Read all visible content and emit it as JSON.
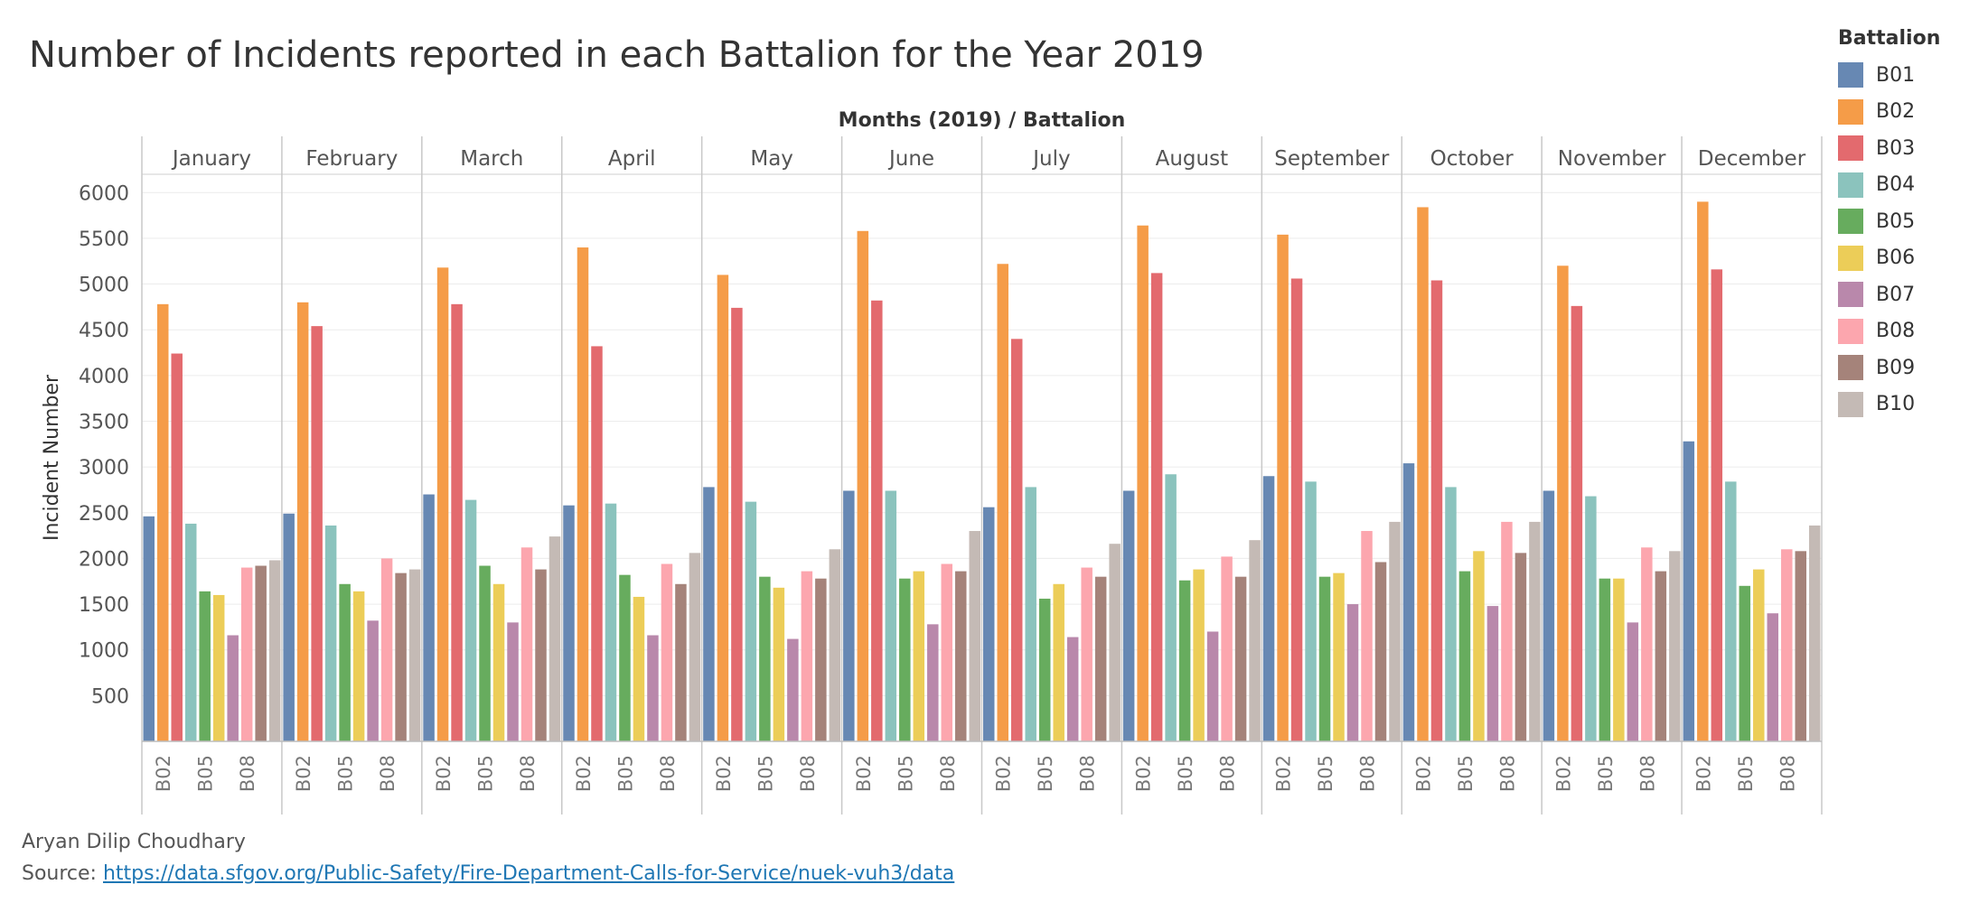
{
  "title": "Number of Incidents reported in each Battalion for the Year 2019",
  "credit": "Aryan Dilip Choudhary",
  "source_label": "Source:",
  "source_url": "https://data.sfgov.org/Public-Safety/Fire-Department-Calls-for-Service/nuek-vuh3/data",
  "colors": {
    "B01": "#6788b3",
    "B02": "#f59c48",
    "B03": "#e36a6e",
    "B04": "#8bc3bd",
    "B05": "#67ac5e",
    "B06": "#eccd58",
    "B07": "#b988ab",
    "B08": "#fca6ae",
    "B09": "#a5837a",
    "B10": "#c4bab5"
  },
  "chart_data": {
    "type": "bar",
    "title": "Number of Incidents reported in each Battalion for the Year 2019",
    "xlabel": "Months (2019)  /  Battalion",
    "ylabel": "Incident Number",
    "ylim": [
      0,
      6200
    ],
    "yticks": [
      500,
      1000,
      1500,
      2000,
      2500,
      3000,
      3500,
      4000,
      4500,
      5000,
      5500,
      6000
    ],
    "grid": true,
    "legend_title": "Battalion",
    "legend_position": "top-right",
    "months": [
      "January",
      "February",
      "March",
      "April",
      "May",
      "June",
      "July",
      "August",
      "September",
      "October",
      "November",
      "December"
    ],
    "battalions": [
      "B01",
      "B02",
      "B03",
      "B04",
      "B05",
      "B06",
      "B07",
      "B08",
      "B09",
      "B10"
    ],
    "x_tick_labels": [
      "B02",
      "B05",
      "B08"
    ],
    "series": [
      {
        "name": "B01",
        "values": [
          2460,
          2490,
          2700,
          2580,
          2780,
          2740,
          2560,
          2740,
          2900,
          3040,
          2740,
          3280
        ]
      },
      {
        "name": "B02",
        "values": [
          4780,
          4800,
          5180,
          5400,
          5100,
          5580,
          5220,
          5640,
          5540,
          5840,
          5200,
          5900
        ]
      },
      {
        "name": "B03",
        "values": [
          4240,
          4540,
          4780,
          4320,
          4740,
          4820,
          4400,
          5120,
          5060,
          5040,
          4760,
          5160
        ]
      },
      {
        "name": "B04",
        "values": [
          2380,
          2360,
          2640,
          2600,
          2620,
          2740,
          2780,
          2920,
          2840,
          2780,
          2680,
          2840
        ]
      },
      {
        "name": "B05",
        "values": [
          1640,
          1720,
          1920,
          1820,
          1800,
          1780,
          1560,
          1760,
          1800,
          1860,
          1780,
          1700
        ]
      },
      {
        "name": "B06",
        "values": [
          1600,
          1640,
          1720,
          1580,
          1680,
          1860,
          1720,
          1880,
          1840,
          2080,
          1780,
          1880
        ]
      },
      {
        "name": "B07",
        "values": [
          1160,
          1320,
          1300,
          1160,
          1120,
          1280,
          1140,
          1200,
          1500,
          1480,
          1300,
          1400
        ]
      },
      {
        "name": "B08",
        "values": [
          1900,
          2000,
          2120,
          1940,
          1860,
          1940,
          1900,
          2020,
          2300,
          2400,
          2120,
          2100
        ]
      },
      {
        "name": "B09",
        "values": [
          1920,
          1840,
          1880,
          1720,
          1780,
          1860,
          1800,
          1800,
          1960,
          2060,
          1860,
          2080
        ]
      },
      {
        "name": "B10",
        "values": [
          1980,
          1880,
          2240,
          2060,
          2100,
          2300,
          2160,
          2200,
          2400,
          2400,
          2080,
          2360
        ]
      }
    ]
  }
}
